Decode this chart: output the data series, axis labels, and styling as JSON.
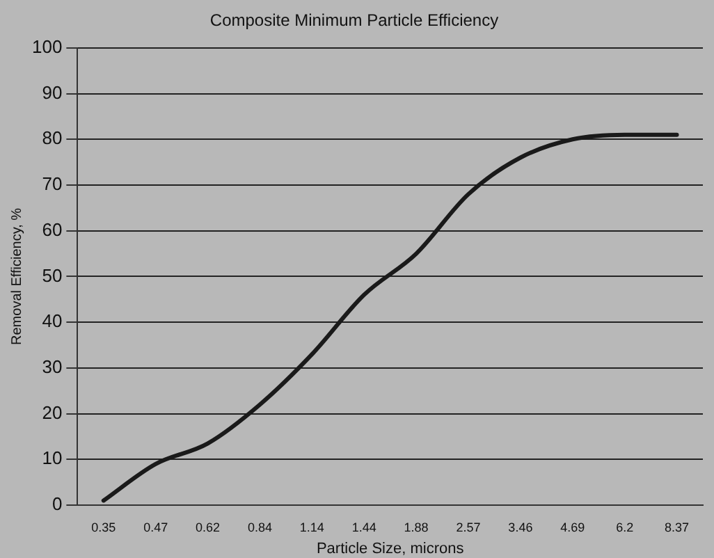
{
  "chart_data": {
    "type": "line",
    "title": "Composite Minimum Particle Efficiency",
    "xlabel": "Particle Size, microns",
    "ylabel": "Removal Efficiency, %",
    "categories": [
      "0.35",
      "0.47",
      "0.62",
      "0.84",
      "1.14",
      "1.44",
      "1.88",
      "2.57",
      "3.46",
      "4.69",
      "6.2",
      "8.37"
    ],
    "series": [
      {
        "color": "#1a1a1a",
        "values": [
          1,
          9,
          13.5,
          22,
          33,
          46,
          55,
          68,
          76,
          80,
          81,
          81
        ]
      }
    ],
    "ylim": [
      0,
      100
    ],
    "yticks": [
      0,
      10,
      20,
      30,
      40,
      50,
      60,
      70,
      80,
      90,
      100
    ],
    "grid": "y",
    "legend": false,
    "marker": "none",
    "line_style": "solid"
  }
}
